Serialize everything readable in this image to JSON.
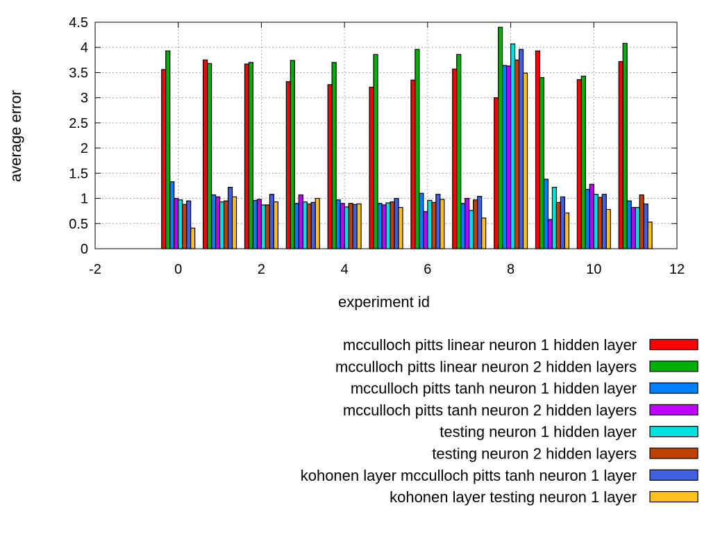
{
  "chart_data": {
    "type": "bar",
    "title": "",
    "xlabel": "experiment id",
    "ylabel": "average error",
    "xlim": [
      -2,
      12
    ],
    "ylim": [
      0,
      4.5
    ],
    "xticks": [
      "-2",
      "0",
      "2",
      "4",
      "6",
      "8",
      "10",
      "12"
    ],
    "yticks": [
      "0",
      "0.5",
      "1",
      "1.5",
      "2",
      "2.5",
      "3",
      "3.5",
      "4",
      "4.5"
    ],
    "grid": true,
    "legend_position": "bottom-right, below plot",
    "categories": [
      0,
      1,
      2,
      3,
      4,
      5,
      6,
      7,
      8,
      9,
      10,
      11
    ],
    "series": [
      {
        "name": "mcculloch pitts linear neuron 1 hidden layer",
        "color": "#ff0000",
        "values": [
          3.56,
          3.75,
          3.67,
          3.32,
          3.26,
          3.21,
          3.35,
          3.57,
          3.0,
          3.93,
          3.36,
          3.72
        ]
      },
      {
        "name": "mcculloch pitts linear neuron 2 hidden layers",
        "color": "#00b000",
        "values": [
          3.93,
          3.68,
          3.7,
          3.74,
          3.7,
          3.86,
          3.96,
          3.86,
          4.4,
          3.4,
          3.43,
          4.08
        ]
      },
      {
        "name": "mcculloch pitts tanh neuron 1 hidden layer",
        "color": "#0080ff",
        "values": [
          1.33,
          1.07,
          0.96,
          0.9,
          0.97,
          0.9,
          1.1,
          0.9,
          3.64,
          1.38,
          1.18,
          0.95
        ]
      },
      {
        "name": "mcculloch pitts tanh neuron 2 hidden layers",
        "color": "#c000ff",
        "values": [
          1.0,
          1.03,
          0.98,
          1.07,
          0.9,
          0.87,
          0.74,
          1.0,
          3.63,
          0.58,
          1.28,
          0.82
        ]
      },
      {
        "name": "testing neuron 1 hidden layer",
        "color": "#00e0e0",
        "values": [
          0.97,
          0.93,
          0.87,
          0.93,
          0.83,
          0.91,
          0.96,
          0.76,
          4.07,
          1.22,
          1.08,
          0.82
        ]
      },
      {
        "name": "testing neuron 2 hidden layers",
        "color": "#c04000",
        "values": [
          0.88,
          0.95,
          0.87,
          0.89,
          0.9,
          0.93,
          0.92,
          0.97,
          3.75,
          0.92,
          1.02,
          1.07
        ]
      },
      {
        "name": "kohonen layer mcculloch pitts tanh neuron 1 layer",
        "color": "#4060e0",
        "values": [
          0.95,
          1.22,
          1.08,
          0.92,
          0.88,
          1.0,
          1.08,
          1.04,
          3.96,
          1.03,
          1.08,
          0.89
        ]
      },
      {
        "name": "kohonen layer testing neuron 1 layer",
        "color": "#ffc020",
        "values": [
          0.41,
          1.03,
          0.93,
          1.0,
          0.89,
          0.82,
          0.98,
          0.61,
          3.49,
          0.71,
          0.78,
          0.53
        ]
      }
    ]
  }
}
